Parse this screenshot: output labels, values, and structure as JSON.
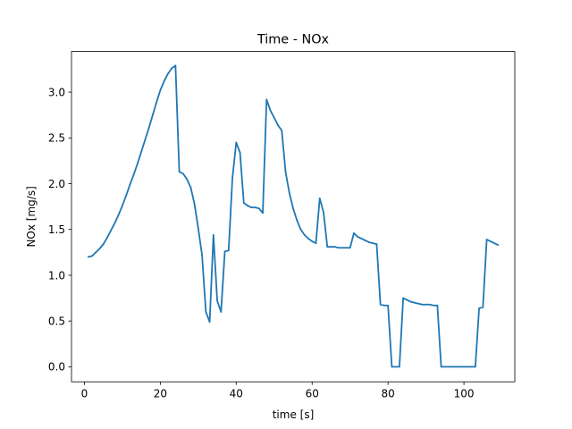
{
  "chart_data": {
    "type": "line",
    "title": "Time - NOx",
    "xlabel": "time [s]",
    "ylabel": "NOx [mg/s]",
    "xlim": [
      -3.4,
      113.4
    ],
    "ylim": [
      -0.164,
      3.444
    ],
    "xticks": [
      0,
      20,
      40,
      60,
      80,
      100
    ],
    "yticks": [
      0.0,
      0.5,
      1.0,
      1.5,
      2.0,
      2.5,
      3.0
    ],
    "xtick_labels": [
      "0",
      "20",
      "40",
      "60",
      "80",
      "100"
    ],
    "ytick_labels": [
      "0.0",
      "0.5",
      "1.0",
      "1.5",
      "2.0",
      "2.5",
      "3.0"
    ],
    "grid": false,
    "series": [
      {
        "color": "#1f77b4",
        "x": [
          1,
          2,
          3,
          4,
          5,
          6,
          7,
          8,
          9,
          10,
          11,
          12,
          13,
          14,
          15,
          16,
          17,
          18,
          19,
          20,
          21,
          22,
          23,
          24,
          25,
          26,
          27,
          28,
          29,
          30,
          31,
          32,
          33,
          34,
          35,
          36,
          37,
          38,
          39,
          40,
          41,
          42,
          43,
          44,
          45,
          46,
          47,
          48,
          49,
          50,
          51,
          52,
          53,
          54,
          55,
          56,
          57,
          58,
          59,
          60,
          61,
          62,
          63,
          64,
          65,
          66,
          67,
          68,
          69,
          70,
          71,
          72,
          73,
          74,
          75,
          76,
          77,
          78,
          79,
          80,
          81,
          82,
          83,
          84,
          85,
          86,
          87,
          88,
          89,
          90,
          91,
          92,
          93,
          94,
          95,
          96,
          97,
          98,
          99,
          100,
          101,
          102,
          103,
          104,
          105,
          106,
          107,
          108,
          109
        ],
        "y": [
          1.2,
          1.21,
          1.25,
          1.29,
          1.34,
          1.41,
          1.49,
          1.57,
          1.66,
          1.76,
          1.87,
          1.99,
          2.1,
          2.22,
          2.35,
          2.48,
          2.61,
          2.75,
          2.89,
          3.02,
          3.12,
          3.2,
          3.26,
          3.29,
          2.13,
          2.11,
          2.05,
          1.96,
          1.78,
          1.51,
          1.22,
          0.6,
          0.49,
          1.44,
          0.72,
          0.6,
          1.26,
          1.27,
          2.06,
          2.45,
          2.34,
          1.79,
          1.76,
          1.74,
          1.74,
          1.73,
          1.68,
          2.92,
          2.8,
          2.72,
          2.64,
          2.58,
          2.13,
          1.9,
          1.73,
          1.6,
          1.5,
          1.44,
          1.4,
          1.37,
          1.35,
          1.84,
          1.69,
          1.31,
          1.31,
          1.31,
          1.3,
          1.3,
          1.3,
          1.3,
          1.46,
          1.42,
          1.4,
          1.38,
          1.36,
          1.35,
          1.34,
          0.68,
          0.67,
          0.67,
          0.0,
          0.0,
          0.0,
          0.75,
          0.73,
          0.71,
          0.7,
          0.69,
          0.68,
          0.68,
          0.68,
          0.67,
          0.67,
          0.0,
          0.0,
          0.0,
          0.0,
          0.0,
          0.0,
          0.0,
          0.0,
          0.0,
          0.0,
          0.64,
          0.65,
          1.39,
          1.37,
          1.35,
          1.33
        ]
      }
    ]
  }
}
